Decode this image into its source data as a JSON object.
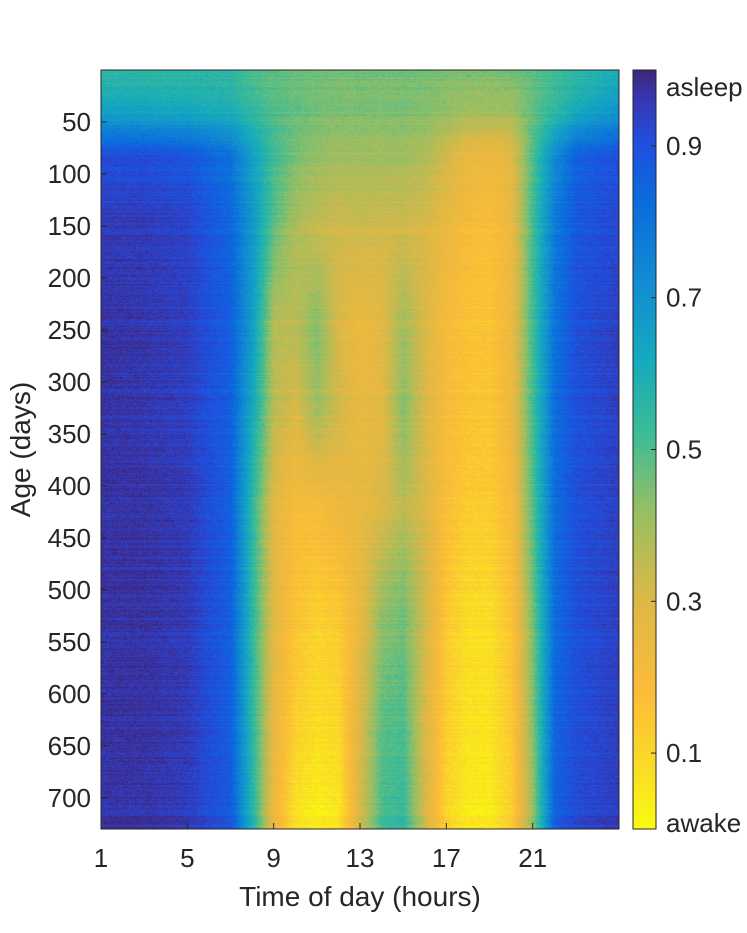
{
  "chart_data": {
    "type": "heatmap",
    "xlabel": "Time of day (hours)",
    "ylabel": "Age (days)",
    "x_range": [
      1,
      25
    ],
    "y_range": [
      0,
      730
    ],
    "x_ticks": [
      1,
      5,
      9,
      13,
      17,
      21
    ],
    "x_tick_labels": [
      "1",
      "5",
      "9",
      "13",
      "17",
      "21"
    ],
    "y_ticks": [
      50,
      100,
      150,
      200,
      250,
      300,
      350,
      400,
      450,
      500,
      550,
      600,
      650,
      700
    ],
    "y_tick_labels": [
      "50",
      "100",
      "150",
      "200",
      "250",
      "300",
      "350",
      "400",
      "450",
      "500",
      "550",
      "600",
      "650",
      "700"
    ],
    "colorbar": {
      "colormap": "parula",
      "range": [
        0,
        1
      ],
      "ticks": [
        0,
        0.1,
        0.3,
        0.5,
        0.7,
        0.9,
        1
      ],
      "tick_labels": [
        "awake",
        "0.1",
        "0.3",
        "0.5",
        "0.7",
        "0.9",
        "asleep"
      ]
    },
    "hours": [
      1,
      3,
      5,
      7,
      8,
      9,
      10,
      11,
      12,
      13,
      14,
      15,
      16,
      17,
      18,
      19,
      20,
      21,
      22,
      23,
      25
    ],
    "age_rows": [
      {
        "age": 0,
        "values": [
          0.55,
          0.55,
          0.55,
          0.55,
          0.5,
          0.48,
          0.47,
          0.46,
          0.46,
          0.46,
          0.46,
          0.46,
          0.46,
          0.45,
          0.45,
          0.45,
          0.46,
          0.48,
          0.52,
          0.55,
          0.6
        ]
      },
      {
        "age": 40,
        "values": [
          0.65,
          0.64,
          0.63,
          0.6,
          0.55,
          0.5,
          0.48,
          0.46,
          0.45,
          0.45,
          0.45,
          0.45,
          0.44,
          0.42,
          0.4,
          0.4,
          0.4,
          0.48,
          0.55,
          0.62,
          0.7
        ]
      },
      {
        "age": 80,
        "values": [
          0.9,
          0.9,
          0.88,
          0.8,
          0.65,
          0.52,
          0.45,
          0.42,
          0.4,
          0.4,
          0.4,
          0.4,
          0.38,
          0.32,
          0.26,
          0.24,
          0.28,
          0.5,
          0.72,
          0.85,
          0.9
        ]
      },
      {
        "age": 150,
        "values": [
          0.95,
          0.95,
          0.93,
          0.84,
          0.68,
          0.48,
          0.38,
          0.34,
          0.32,
          0.33,
          0.32,
          0.32,
          0.3,
          0.25,
          0.2,
          0.18,
          0.25,
          0.52,
          0.78,
          0.88,
          0.92
        ]
      },
      {
        "age": 250,
        "values": [
          0.97,
          0.96,
          0.94,
          0.86,
          0.66,
          0.36,
          0.36,
          0.44,
          0.3,
          0.24,
          0.28,
          0.4,
          0.3,
          0.2,
          0.16,
          0.16,
          0.24,
          0.52,
          0.8,
          0.9,
          0.94
        ]
      },
      {
        "age": 330,
        "values": [
          0.97,
          0.96,
          0.94,
          0.86,
          0.62,
          0.36,
          0.3,
          0.4,
          0.32,
          0.26,
          0.28,
          0.44,
          0.3,
          0.2,
          0.16,
          0.15,
          0.24,
          0.52,
          0.82,
          0.9,
          0.94
        ]
      },
      {
        "age": 420,
        "values": [
          0.97,
          0.97,
          0.95,
          0.86,
          0.55,
          0.28,
          0.2,
          0.2,
          0.24,
          0.26,
          0.3,
          0.36,
          0.3,
          0.18,
          0.13,
          0.13,
          0.2,
          0.5,
          0.82,
          0.9,
          0.94
        ]
      },
      {
        "age": 520,
        "values": [
          0.97,
          0.97,
          0.95,
          0.86,
          0.55,
          0.28,
          0.16,
          0.12,
          0.14,
          0.26,
          0.42,
          0.46,
          0.32,
          0.14,
          0.08,
          0.08,
          0.16,
          0.46,
          0.82,
          0.9,
          0.94
        ]
      },
      {
        "age": 620,
        "values": [
          0.97,
          0.97,
          0.95,
          0.86,
          0.55,
          0.26,
          0.12,
          0.08,
          0.1,
          0.3,
          0.48,
          0.5,
          0.3,
          0.12,
          0.06,
          0.06,
          0.14,
          0.44,
          0.84,
          0.9,
          0.94
        ]
      },
      {
        "age": 730,
        "values": [
          0.97,
          0.97,
          0.95,
          0.88,
          0.58,
          0.24,
          0.06,
          0.03,
          0.05,
          0.32,
          0.52,
          0.55,
          0.32,
          0.1,
          0.04,
          0.04,
          0.12,
          0.42,
          0.86,
          0.92,
          0.95
        ]
      }
    ]
  }
}
